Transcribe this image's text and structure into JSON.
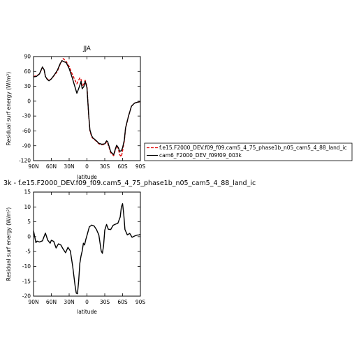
{
  "chart_data": [
    {
      "type": "line",
      "title": "JJA",
      "xlabel": "latitude",
      "ylabel": "Residual surf energy (W/m²)",
      "xlim": [
        90,
        -90
      ],
      "ylim": [
        -120,
        90
      ],
      "x_ticks": [
        90,
        60,
        30,
        0,
        -30,
        -60,
        -90
      ],
      "x_tick_labels": [
        "90N",
        "60N",
        "30N",
        "0",
        "30S",
        "60S",
        "90S"
      ],
      "y_ticks": [
        -120,
        -90,
        -60,
        -30,
        0,
        30,
        60,
        90
      ],
      "y_tick_labels": [
        "-120",
        "-90",
        "-60",
        "-30",
        "0",
        "30",
        "60",
        "90"
      ],
      "legend_position": "right",
      "series": [
        {
          "name": "f.e15.F2000_DEV.f09_f09.cam5_4_75_phase1b_n05_cam5_4_88_land_ic",
          "color": "#e00000",
          "dash": "dashed",
          "x": [
            90,
            85,
            80,
            75,
            72,
            70,
            67,
            64,
            60,
            55,
            50,
            45,
            42,
            40,
            35,
            30,
            25,
            20,
            17,
            15,
            12,
            10,
            8,
            5,
            3,
            0,
            -3,
            -5,
            -8,
            -10,
            -15,
            -20,
            -25,
            -30,
            -33,
            -35,
            -40,
            -45,
            -48,
            -50,
            -53,
            -55,
            -58,
            -60,
            -63,
            -65,
            -70,
            -75,
            -80,
            -85,
            -90
          ],
          "y": [
            50,
            51,
            55,
            68,
            62,
            50,
            45,
            42,
            45,
            52,
            60,
            75,
            82,
            86,
            80,
            70,
            55,
            42,
            35,
            40,
            47,
            44,
            30,
            35,
            42,
            30,
            -30,
            -60,
            -72,
            -75,
            -80,
            -86,
            -88,
            -87,
            -82,
            -85,
            -104,
            -110,
            -98,
            -90,
            -96,
            -108,
            -112,
            -100,
            -80,
            -55,
            -30,
            -10,
            -4,
            -2,
            -1
          ]
        },
        {
          "name": "cam6_F2000_DEV_f09f09_003k",
          "color": "#000000",
          "dash": "solid",
          "x": [
            90,
            85,
            80,
            75,
            72,
            70,
            67,
            64,
            60,
            55,
            50,
            45,
            42,
            40,
            35,
            30,
            25,
            20,
            17,
            15,
            12,
            10,
            8,
            5,
            3,
            0,
            -3,
            -5,
            -8,
            -10,
            -15,
            -20,
            -25,
            -30,
            -33,
            -35,
            -40,
            -45,
            -48,
            -50,
            -53,
            -55,
            -58,
            -60,
            -63,
            -65,
            -70,
            -75,
            -80,
            -85,
            -90
          ],
          "y": [
            49,
            50,
            55,
            69,
            63,
            50,
            44,
            41,
            45,
            53,
            62,
            76,
            82,
            80,
            78,
            66,
            48,
            28,
            16,
            22,
            32,
            40,
            25,
            30,
            40,
            27,
            -29,
            -58,
            -70,
            -74,
            -79,
            -85,
            -87,
            -86,
            -80,
            -82,
            -102,
            -108,
            -96,
            -89,
            -94,
            -101,
            -100,
            -94,
            -78,
            -54,
            -30,
            -10,
            -4,
            -2,
            -1
          ]
        }
      ]
    },
    {
      "type": "line",
      "title": "3k - f.e15.F2000_DEV.f09_f09.cam5_4_75_phase1b_n05_cam5_4_88_land_ic",
      "xlabel": "latitude",
      "ylabel": "Residual surf energy (W/m²)",
      "xlim": [
        90,
        -90
      ],
      "ylim": [
        -20,
        15
      ],
      "x_ticks": [
        90,
        60,
        30,
        0,
        -30,
        -60,
        -90
      ],
      "x_tick_labels": [
        "90N",
        "60N",
        "30N",
        "0",
        "30S",
        "60S",
        "90S"
      ],
      "y_ticks": [
        -20,
        -15,
        -10,
        -5,
        0,
        5,
        10,
        15
      ],
      "y_tick_labels": [
        "-20",
        "-15",
        "-10",
        "-5",
        "0",
        "5",
        "10",
        "15"
      ],
      "series": [
        {
          "name": "",
          "color": "#000000",
          "dash": "solid",
          "x": [
            90,
            88,
            86,
            84,
            80,
            75,
            70,
            66,
            62,
            60,
            56,
            52,
            48,
            44,
            40,
            36,
            32,
            28,
            24,
            20,
            18,
            16,
            14,
            12,
            10,
            8,
            6,
            4,
            2,
            0,
            -4,
            -8,
            -12,
            -16,
            -20,
            -24,
            -26,
            -28,
            -30,
            -33,
            -36,
            -40,
            -44,
            -48,
            -52,
            -56,
            -58,
            -60,
            -62,
            -64,
            -68,
            -72,
            -76,
            -80,
            -84,
            -88,
            -90
          ],
          "y": [
            2,
            0,
            -2,
            -1.5,
            -1.8,
            -1.4,
            1.2,
            -1.2,
            -2.2,
            -1.2,
            -1.6,
            -3.8,
            -2.4,
            -2.8,
            -4.2,
            -5.4,
            -3.6,
            -4.8,
            -10,
            -16.5,
            -19,
            -19.2,
            -15,
            -9,
            -6.5,
            -4.8,
            -2.2,
            -2.8,
            -1,
            0.4,
            3.3,
            3.9,
            3.6,
            2.4,
            0.6,
            -4.8,
            -5.6,
            -3,
            2.2,
            4.1,
            2.5,
            2.4,
            3.8,
            4.2,
            4.5,
            6.6,
            10,
            11.1,
            7.5,
            2.4,
            0.6,
            1.1,
            -0.2,
            0.2,
            0.5,
            0.6,
            0.8
          ]
        }
      ]
    }
  ]
}
